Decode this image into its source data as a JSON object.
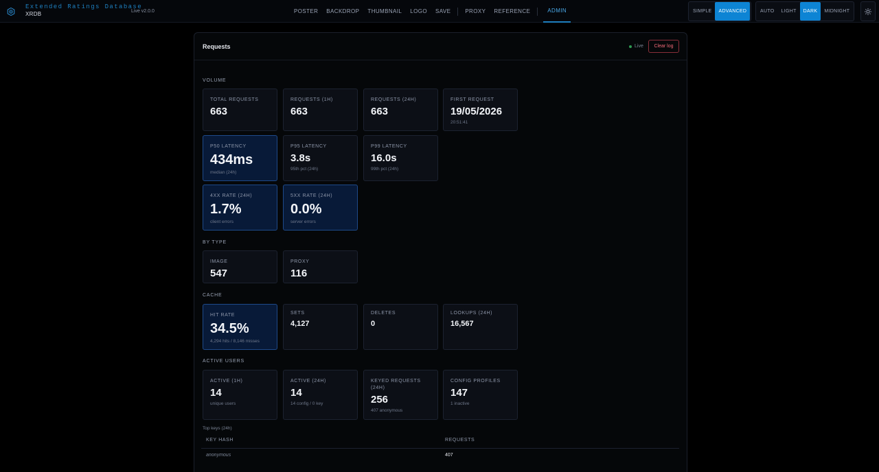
{
  "header": {
    "brand_full": "Extended Ratings Database",
    "brand_short": "XRDB",
    "version": "Live v2.0.0",
    "nav": [
      "POSTER",
      "BACKDROP",
      "THUMBNAIL",
      "LOGO",
      "SAVE",
      "PROXY",
      "REFERENCE",
      "ADMIN"
    ],
    "active_nav": "ADMIN",
    "modes": [
      "SIMPLE",
      "ADVANCED"
    ],
    "active_mode": "ADVANCED",
    "themes": [
      "AUTO",
      "LIGHT",
      "DARK",
      "MIDNIGHT"
    ],
    "active_theme": "DARK"
  },
  "panel": {
    "title": "Requests",
    "live_label": "Live",
    "clear_label": "Clear log"
  },
  "sections": {
    "volume": "VOLUME",
    "by_type": "BY TYPE",
    "cache": "CACHE",
    "active_users": "ACTIVE USERS"
  },
  "volume": {
    "total": {
      "label": "TOTAL REQUESTS",
      "value": "663"
    },
    "r1h": {
      "label": "REQUESTS (1H)",
      "value": "663"
    },
    "r24h": {
      "label": "REQUESTS (24H)",
      "value": "663"
    },
    "first": {
      "label": "FIRST REQUEST",
      "value": "19/05/2026",
      "sub": "20:51:41"
    },
    "p50": {
      "label": "P50 LATENCY",
      "value": "434ms",
      "sub": "median (24h)"
    },
    "p95": {
      "label": "P95 LATENCY",
      "value": "3.8s",
      "sub": "95th pct (24h)"
    },
    "p99": {
      "label": "P99 LATENCY",
      "value": "16.0s",
      "sub": "99th pct (24h)"
    },
    "rate4xx": {
      "label": "4XX RATE (24H)",
      "value": "1.7%",
      "sub": "client errors"
    },
    "rate5xx": {
      "label": "5XX RATE (24H)",
      "value": "0.0%",
      "sub": "server errors"
    }
  },
  "by_type": {
    "image": {
      "label": "IMAGE",
      "value": "547"
    },
    "proxy": {
      "label": "PROXY",
      "value": "116"
    }
  },
  "cache": {
    "hit_rate": {
      "label": "HIT RATE",
      "value": "34.5%",
      "sub": "4,294 hits / 8,146 misses"
    },
    "sets": {
      "label": "SETS",
      "value": "4,127"
    },
    "deletes": {
      "label": "DELETES",
      "value": "0"
    },
    "lookups": {
      "label": "LOOKUPS (24H)",
      "value": "16,567"
    }
  },
  "active_users": {
    "a1h": {
      "label": "ACTIVE (1H)",
      "value": "14",
      "sub": "unique users"
    },
    "a24h": {
      "label": "ACTIVE (24H)",
      "value": "14",
      "sub": "14 config / 0 key"
    },
    "keyed": {
      "label": "KEYED REQUESTS (24H)",
      "value": "256",
      "sub": "407 anonymous"
    },
    "profiles": {
      "label": "CONFIG PROFILES",
      "value": "147",
      "sub": "1 inactive"
    }
  },
  "top_keys": {
    "label": "Top keys (24h)",
    "columns": [
      "KEY HASH",
      "REQUESTS"
    ],
    "rows": [
      {
        "key": "anonymous",
        "requests": "407"
      }
    ]
  },
  "colors": {
    "accent": "#0d84d4",
    "highlight_card": "#081a38",
    "danger": "#f06a78",
    "live": "#2e9a52"
  }
}
